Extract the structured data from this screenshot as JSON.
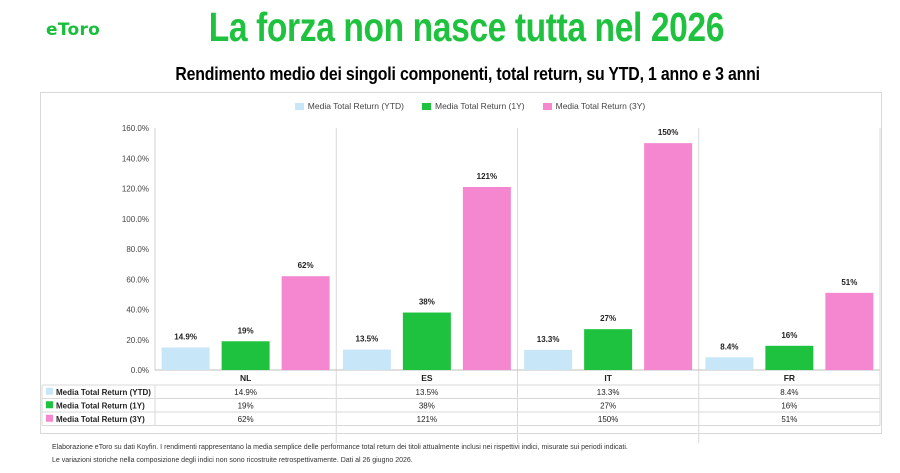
{
  "brand": {
    "logo_text": "eToro"
  },
  "header": {
    "title": "La forza non nasce tutta nel 2026",
    "subtitle": "Rendimento medio dei singoli componenti, total return, su YTD, 1 anno e 3 anni"
  },
  "chart_data": {
    "type": "bar",
    "categories": [
      "NL",
      "ES",
      "IT",
      "FR"
    ],
    "series": [
      {
        "name": "Media Total Return (YTD)",
        "color": "#c7e6f7",
        "values": [
          14.9,
          13.5,
          13.3,
          8.4
        ],
        "labels": [
          "14.9%",
          "13.5%",
          "13.3%",
          "8.4%"
        ]
      },
      {
        "name": "Media Total Return (1Y)",
        "color": "#1fc23f",
        "values": [
          19,
          38,
          27,
          16
        ],
        "labels": [
          "19%",
          "38%",
          "27%",
          "16%"
        ]
      },
      {
        "name": "Media Total Return (3Y)",
        "color": "#f487cf",
        "values": [
          62,
          121,
          150,
          51
        ],
        "labels": [
          "62%",
          "121%",
          "150%",
          "51%"
        ]
      }
    ],
    "yticks": [
      "0.0%",
      "20.0%",
      "40.0%",
      "60.0%",
      "80.0%",
      "100.0%",
      "120.0%",
      "140.0%",
      "160.0%"
    ],
    "ylim": [
      0,
      160
    ],
    "grid": "vertical separators",
    "legend_position": "top",
    "data_table": true
  },
  "footnotes": [
    "Elaborazione eToro su dati Koyfin. I rendimenti rappresentano la media semplice delle performance total return dei titoli attualmente inclusi nei rispettivi indici, misurate sui periodi indicati.",
    "Le variazioni storiche nella composizione degli indici non sono ricostruite retrospettivamente. Dati al 26 giugno 2026."
  ]
}
